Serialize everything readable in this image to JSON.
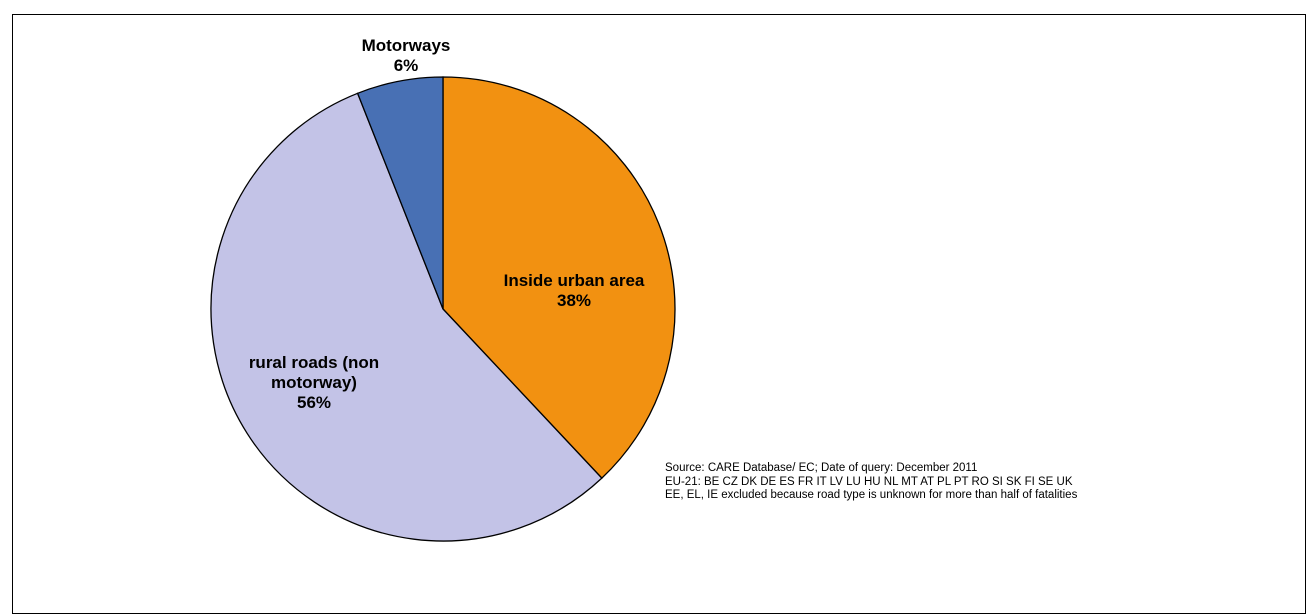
{
  "chart_data": {
    "type": "pie",
    "slices": [
      {
        "label": "Inside urban area",
        "value": 38,
        "value_label": "38%",
        "color": "#F29111"
      },
      {
        "label": "rural roads (non motorway)",
        "value": 56,
        "value_label": "56%",
        "color": "#C3C3E7"
      },
      {
        "label": "Motorways",
        "value": 6,
        "value_label": "6%",
        "color": "#4870B4"
      }
    ],
    "start_angle_deg": 0,
    "direction": "clockwise",
    "legend": "none",
    "data_labels": "category and percent"
  },
  "notes": {
    "line1": "Source: CARE Database/ EC; Date of query: December 2011",
    "line2": "EU-21: BE CZ DK DE ES FR IT LV LU HU NL MT AT PL PT RO SI SK FI SE UK",
    "line3": "EE, EL, IE excluded because road type is unknown for more than half of fatalities"
  }
}
